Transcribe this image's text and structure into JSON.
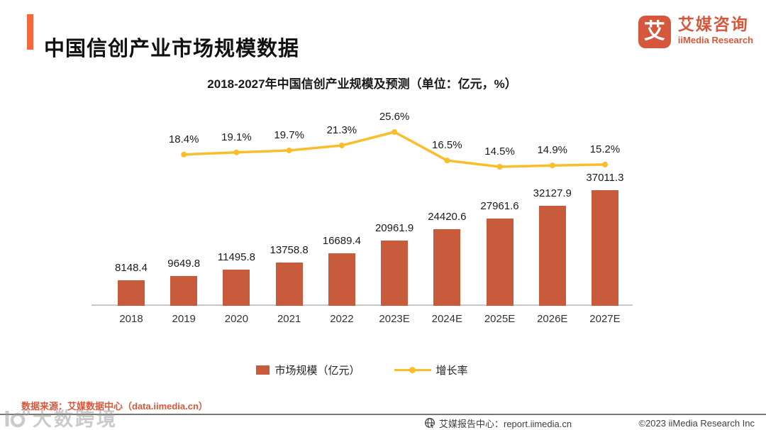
{
  "page": {
    "title": "中国信创产业市场规模数据",
    "logo": {
      "glyph": "艾",
      "name_cn": "艾媒咨询",
      "name_en": "iiMedia Research"
    },
    "source": "数据来源：艾媒数据中心（data.iimedia.cn）",
    "watermark": "大数跨境",
    "footer": {
      "report_center": "艾媒报告中心：report.iimedia.cn",
      "copyright": "©2023  iiMedia Research  Inc"
    },
    "colors": {
      "accent": "#F4683C",
      "brand": "#D6583C",
      "bar": "#C75B3B",
      "line": "#FABD2B",
      "axis": "#C8C8C8"
    }
  },
  "chart_data": {
    "type": "bar",
    "title": "2018-2027年中国信创产业规模及预测（单位：亿元，%）",
    "categories": [
      "2018",
      "2019",
      "2020",
      "2021",
      "2022",
      "2023E",
      "2024E",
      "2025E",
      "2026E",
      "2027E"
    ],
    "series": [
      {
        "name": "市场规模（亿元）",
        "type": "bar",
        "color": "#C75B3B",
        "values": [
          8148.4,
          9649.8,
          11495.8,
          13758.8,
          16689.4,
          20961.9,
          24420.6,
          27961.6,
          32127.9,
          37011.3
        ]
      },
      {
        "name": "增长率",
        "type": "line",
        "color": "#FABD2B",
        "unit": "%",
        "values": [
          null,
          18.4,
          19.1,
          19.7,
          21.3,
          25.6,
          16.5,
          14.5,
          14.9,
          15.2
        ]
      }
    ],
    "legend_position": "bottom",
    "grid": false,
    "ylabel": "",
    "xlabel": ""
  }
}
